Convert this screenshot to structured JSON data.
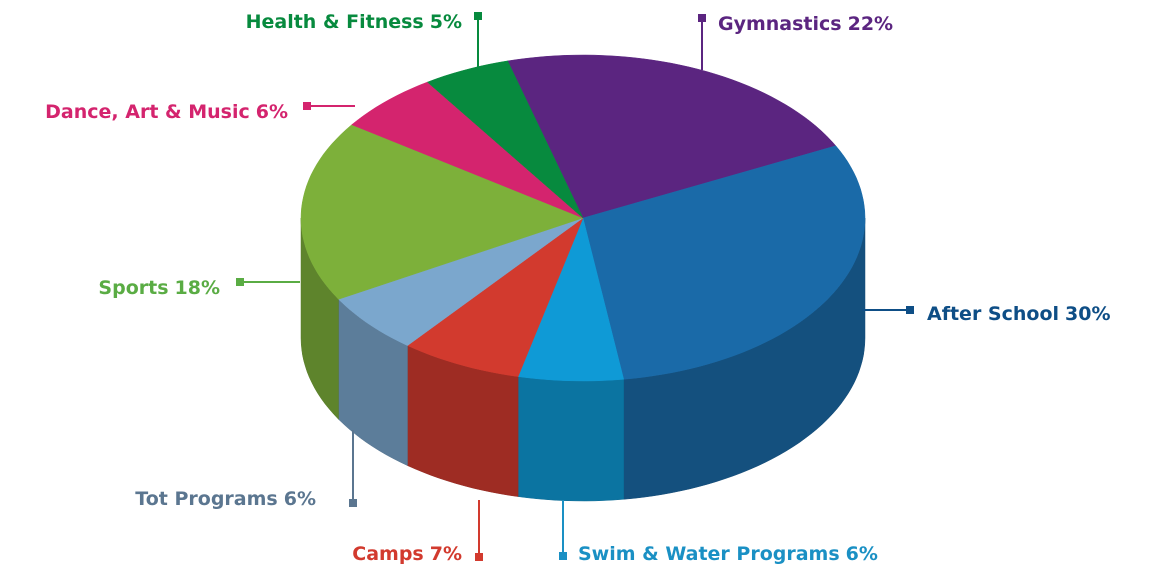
{
  "chart_data": {
    "type": "pie3d",
    "categories": [
      "Gymnastics",
      "After School",
      "Swim & Water Programs",
      "Camps",
      "Tot Programs",
      "Sports",
      "Dance, Art & Music",
      "Health & Fitness"
    ],
    "values": [
      22,
      30,
      6,
      7,
      6,
      18,
      6,
      5
    ],
    "value_labels": [
      "22%",
      "30%",
      "6%",
      "7%",
      "6%",
      "18%",
      "6%",
      "5%"
    ],
    "colors": [
      "#5b2580",
      "#1a6aa8",
      "#0f9ad6",
      "#d23a2e",
      "#7ba7cd",
      "#7db03a",
      "#d4246e",
      "#078a3e"
    ],
    "label_colors": [
      "#5b2580",
      "#0e4e86",
      "#1a90c4",
      "#d23a2e",
      "#5b7690",
      "#5aac44",
      "#d4246e",
      "#078a3e"
    ]
  }
}
